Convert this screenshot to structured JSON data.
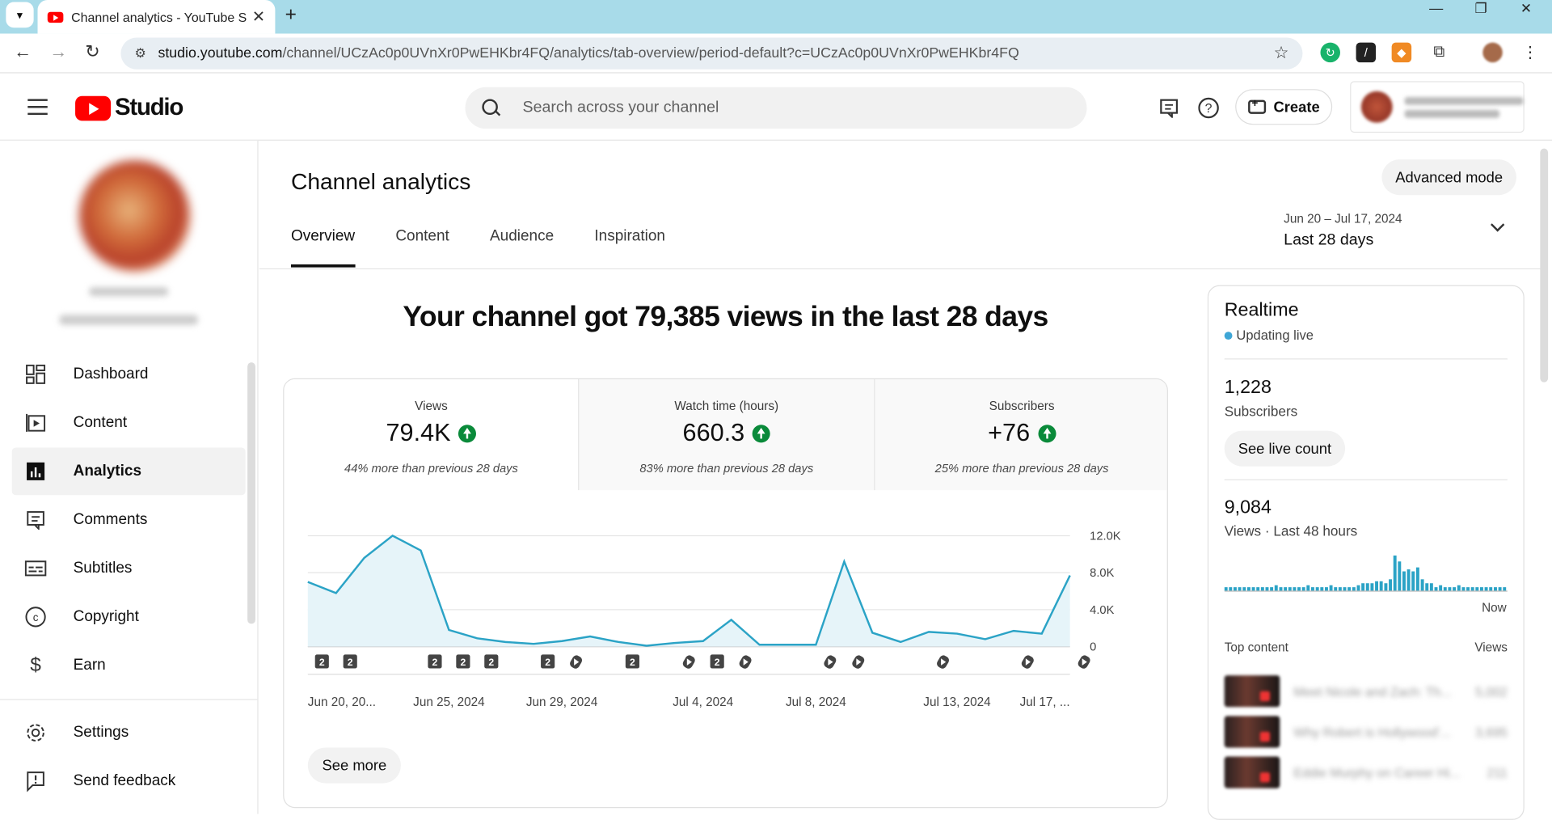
{
  "browser": {
    "tab_title": "Channel analytics - YouTube Studio",
    "url_domain": "studio.youtube.com",
    "url_path": "/channel/UCzAc0p0UVnXr0PwEHKbr4FQ/analytics/tab-overview/period-default?c=UCzAc0p0UVnXr0PwEHKbr4FQ"
  },
  "header": {
    "logo_text": "Studio",
    "search_placeholder": "Search across your channel",
    "create_label": "Create"
  },
  "sidebar": {
    "items": [
      {
        "label": "Dashboard",
        "icon": "dashboard-icon"
      },
      {
        "label": "Content",
        "icon": "content-icon"
      },
      {
        "label": "Analytics",
        "icon": "analytics-icon"
      },
      {
        "label": "Comments",
        "icon": "comments-icon"
      },
      {
        "label": "Subtitles",
        "icon": "subtitles-icon"
      },
      {
        "label": "Copyright",
        "icon": "copyright-icon"
      },
      {
        "label": "Earn",
        "icon": "dollar-icon"
      }
    ],
    "bottom_items": [
      {
        "label": "Settings",
        "icon": "gear-icon"
      },
      {
        "label": "Send feedback",
        "icon": "feedback-icon"
      }
    ]
  },
  "main": {
    "title": "Channel analytics",
    "advanced_mode": "Advanced mode",
    "tabs": [
      "Overview",
      "Content",
      "Audience",
      "Inspiration"
    ],
    "active_tab": "Overview",
    "date_range": {
      "dates": "Jun 20 – Jul 17, 2024",
      "label": "Last 28 days"
    },
    "headline": "Your channel got 79,385 views in the last 28 days",
    "metrics": [
      {
        "label": "Views",
        "value": "79.4K",
        "note": "44% more than previous 28 days"
      },
      {
        "label": "Watch time (hours)",
        "value": "660.3",
        "note": "83% more than previous 28 days"
      },
      {
        "label": "Subscribers",
        "value": "+76",
        "note": "25% more than previous 28 days"
      }
    ],
    "see_more": "See more"
  },
  "chart_data": {
    "type": "area",
    "title": "",
    "series": [
      {
        "values": [
          7000,
          5800,
          9600,
          12000,
          10400,
          1800,
          900,
          500,
          300,
          600,
          1100,
          500,
          100,
          400,
          600,
          2900,
          200,
          200,
          200,
          9200,
          1500,
          500,
          1600,
          1400,
          800,
          1700,
          1400,
          7700
        ]
      }
    ],
    "x_tick_labels": [
      "Jun 20, 20...",
      "Jun 25, 2024",
      "Jun 29, 2024",
      "Jul 4, 2024",
      "Jul 8, 2024",
      "Jul 13, 2024",
      "Jul 17, ..."
    ],
    "y_tick_labels": [
      "12.0K",
      "8.0K",
      "4.0K",
      "0"
    ],
    "ylim": [
      0,
      12000
    ],
    "color": "#2ba3c6",
    "markers": [
      {
        "day": 1,
        "kind": "count",
        "text": "2"
      },
      {
        "day": 2,
        "kind": "count",
        "text": "2"
      },
      {
        "day": 5,
        "kind": "count",
        "text": "2"
      },
      {
        "day": 6,
        "kind": "count",
        "text": "2"
      },
      {
        "day": 7,
        "kind": "count",
        "text": "2"
      },
      {
        "day": 9,
        "kind": "count",
        "text": "2"
      },
      {
        "day": 10,
        "kind": "shorts"
      },
      {
        "day": 12,
        "kind": "count",
        "text": "2"
      },
      {
        "day": 14,
        "kind": "shorts"
      },
      {
        "day": 15,
        "kind": "count",
        "text": "2"
      },
      {
        "day": 16,
        "kind": "shorts"
      },
      {
        "day": 19,
        "kind": "shorts"
      },
      {
        "day": 20,
        "kind": "shorts"
      },
      {
        "day": 23,
        "kind": "shorts"
      },
      {
        "day": 26,
        "kind": "shorts"
      },
      {
        "day": 28,
        "kind": "shorts"
      }
    ]
  },
  "realtime": {
    "title": "Realtime",
    "status": "Updating live",
    "subscribers": "1,228",
    "subscribers_label": "Subscribers",
    "see_live_count": "See live count",
    "views": "9,084",
    "views_label": "Views · Last 48 hours",
    "now_label": "Now",
    "top_content_label": "Top content",
    "views_col_label": "Views",
    "hourly_values": [
      2,
      2,
      2,
      2,
      2,
      2,
      2,
      2,
      2,
      2,
      2,
      3,
      2,
      2,
      2,
      2,
      2,
      2,
      3,
      2,
      2,
      2,
      2,
      3,
      2,
      2,
      2,
      2,
      2,
      3,
      4,
      4,
      4,
      5,
      5,
      4,
      6,
      18,
      15,
      10,
      11,
      10,
      12,
      6,
      4,
      4,
      2,
      3,
      2,
      2,
      2,
      3,
      2,
      2,
      2,
      2,
      2,
      2,
      2,
      2,
      2,
      2
    ],
    "top_content": [
      {
        "title": "Meet Nicole and Zach: Th...",
        "views": "5,002"
      },
      {
        "title": "Why Robert is Hollywood'...",
        "views": "3,695"
      },
      {
        "title": "Eddie Murphy on Career Hi...",
        "views": "211"
      }
    ]
  }
}
